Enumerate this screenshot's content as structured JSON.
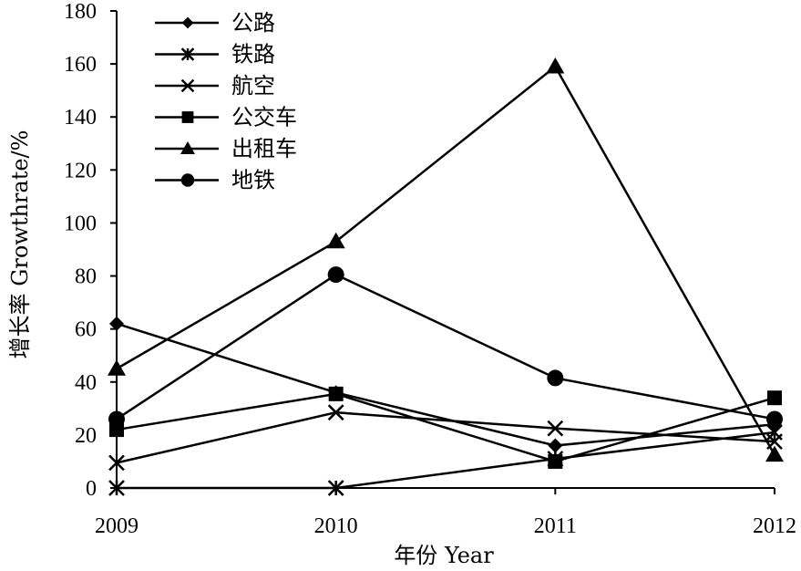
{
  "chart_data": {
    "type": "line",
    "title": "",
    "xlabel": "年份 Year",
    "ylabel": "增长率 Growthrate/%",
    "categories": [
      "2009",
      "2010",
      "2011",
      "2012"
    ],
    "ylim": [
      0,
      180
    ],
    "yticks": [
      0,
      20,
      40,
      60,
      80,
      100,
      120,
      140,
      160,
      180
    ],
    "grid": false,
    "legend_position": "top-left",
    "series": [
      {
        "name": "公路",
        "marker": "diamond",
        "values": [
          62,
          36,
          16,
          24
        ]
      },
      {
        "name": "铁路",
        "marker": "asterisk",
        "values": [
          0,
          0,
          11,
          21
        ]
      },
      {
        "name": "航空",
        "marker": "x",
        "values": [
          9.5,
          28.5,
          22.5,
          17.5
        ]
      },
      {
        "name": "公交车",
        "marker": "square",
        "values": [
          22,
          35.5,
          10,
          34
        ]
      },
      {
        "name": "出租车",
        "marker": "triangle",
        "values": [
          45,
          93,
          159,
          12.5
        ]
      },
      {
        "name": "地铁",
        "marker": "circle",
        "values": [
          26,
          80.5,
          41.5,
          26
        ]
      }
    ]
  }
}
